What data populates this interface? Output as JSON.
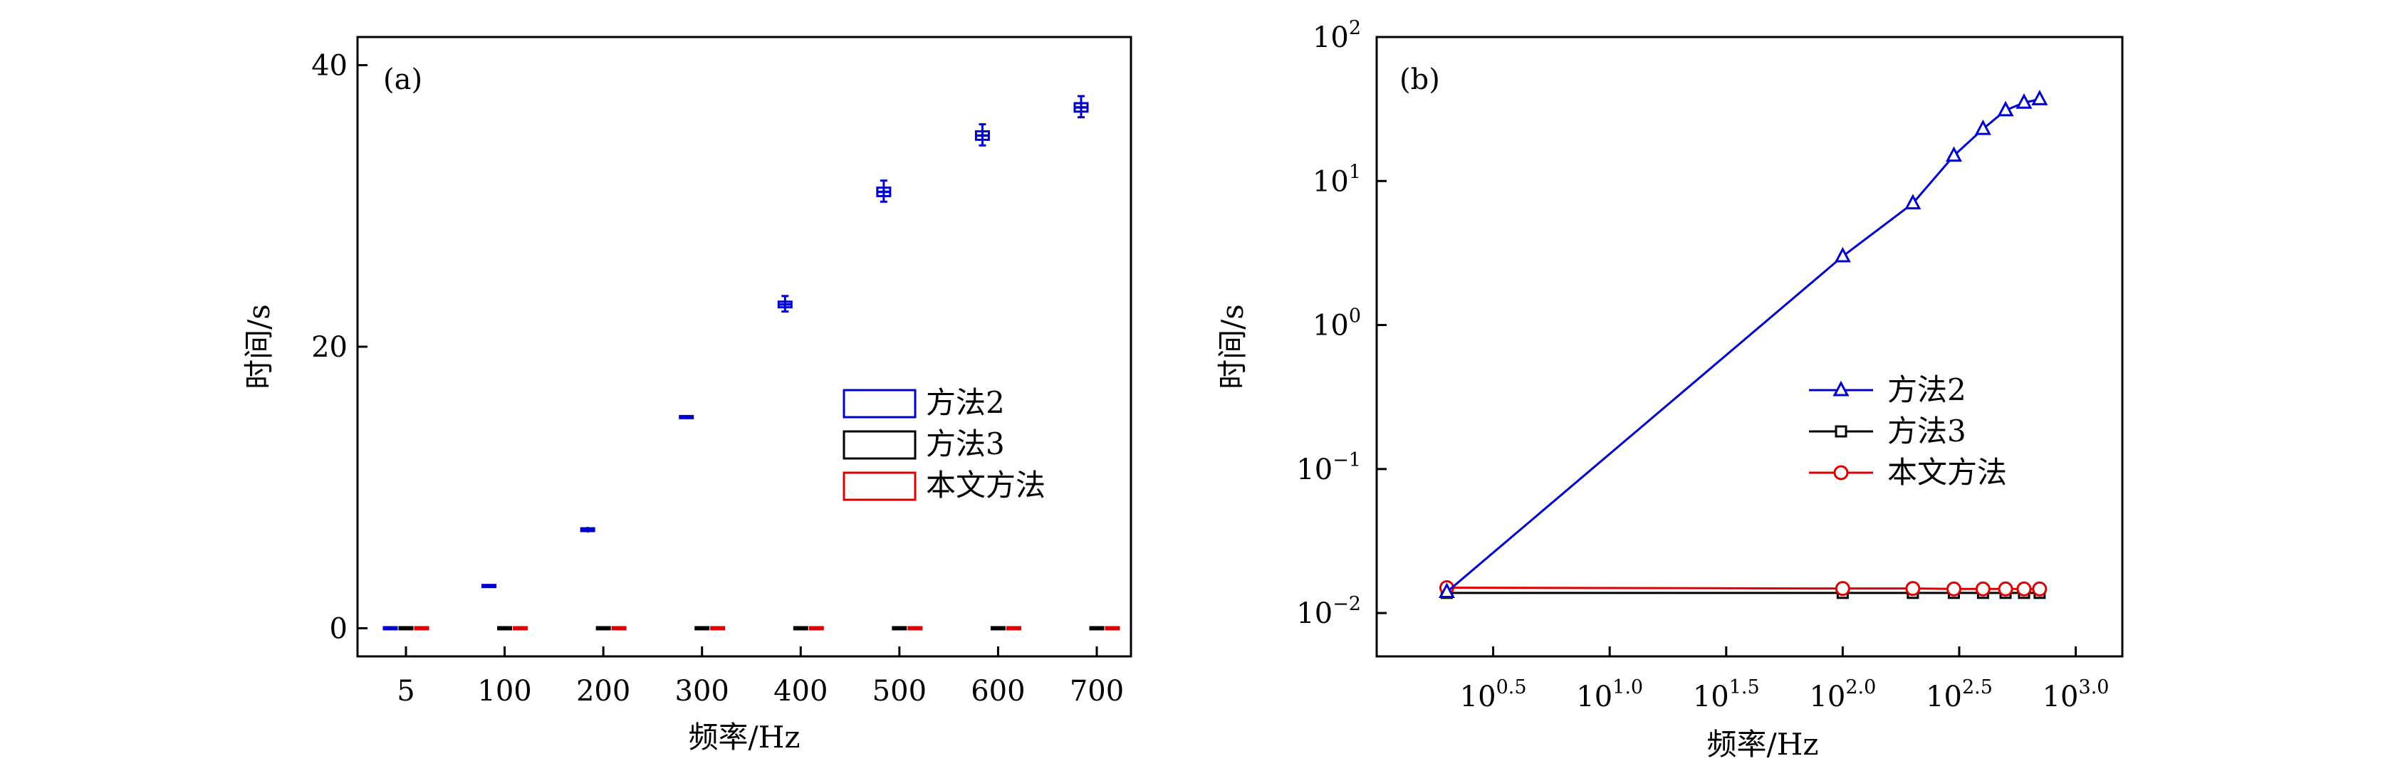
{
  "chart_data": [
    {
      "panel": "(a)",
      "type": "box",
      "xlabel": "频率/Hz",
      "ylabel": "时间/s",
      "categories": [
        "5",
        "100",
        "200",
        "300",
        "400",
        "500",
        "600",
        "700"
      ],
      "yticks": [
        "0",
        "20",
        "40"
      ],
      "ylim": [
        -2,
        42
      ],
      "legend_position": "center-right",
      "series": [
        {
          "name": "方法2",
          "color": "#0000cc",
          "boxes": [
            {
              "low": 0,
              "q1": 0,
              "median": 0,
              "q3": 0,
              "high": 0
            },
            {
              "low": 2.9,
              "q1": 2.95,
              "median": 3,
              "q3": 3.05,
              "high": 3.1
            },
            {
              "low": 6.8,
              "q1": 6.9,
              "median": 7,
              "q3": 7.1,
              "high": 7.2
            },
            {
              "low": 15,
              "q1": 15,
              "median": 15,
              "q3": 15,
              "high": 15
            },
            {
              "low": 22.5,
              "q1": 22.8,
              "median": 23,
              "q3": 23.2,
              "high": 23.6
            },
            {
              "low": 30.3,
              "q1": 30.7,
              "median": 31,
              "q3": 31.3,
              "high": 31.8
            },
            {
              "low": 34.3,
              "q1": 34.7,
              "median": 35,
              "q3": 35.3,
              "high": 35.8
            },
            {
              "low": 36.3,
              "q1": 36.7,
              "median": 37,
              "q3": 37.3,
              "high": 37.8
            }
          ]
        },
        {
          "name": "方法3",
          "color": "#000000",
          "boxes": [
            {
              "low": 0,
              "q1": 0,
              "median": 0,
              "q3": 0,
              "high": 0
            },
            {
              "low": 0,
              "q1": 0,
              "median": 0,
              "q3": 0,
              "high": 0
            },
            {
              "low": 0,
              "q1": 0,
              "median": 0,
              "q3": 0,
              "high": 0
            },
            {
              "low": 0,
              "q1": 0,
              "median": 0,
              "q3": 0,
              "high": 0
            },
            {
              "low": 0,
              "q1": 0,
              "median": 0,
              "q3": 0,
              "high": 0
            },
            {
              "low": 0,
              "q1": 0,
              "median": 0,
              "q3": 0,
              "high": 0
            },
            {
              "low": 0,
              "q1": 0,
              "median": 0,
              "q3": 0,
              "high": 0
            },
            {
              "low": 0,
              "q1": 0,
              "median": 0,
              "q3": 0,
              "high": 0
            }
          ]
        },
        {
          "name": "本文方法",
          "color": "#dd0000",
          "boxes": [
            {
              "low": 0,
              "q1": 0,
              "median": 0,
              "q3": 0,
              "high": 0
            },
            {
              "low": 0,
              "q1": 0,
              "median": 0,
              "q3": 0,
              "high": 0
            },
            {
              "low": 0,
              "q1": 0,
              "median": 0,
              "q3": 0,
              "high": 0
            },
            {
              "low": 0,
              "q1": 0,
              "median": 0,
              "q3": 0,
              "high": 0
            },
            {
              "low": 0,
              "q1": 0,
              "median": 0,
              "q3": 0,
              "high": 0
            },
            {
              "low": 0,
              "q1": 0,
              "median": 0,
              "q3": 0,
              "high": 0
            },
            {
              "low": 0,
              "q1": 0,
              "median": 0,
              "q3": 0,
              "high": 0
            },
            {
              "low": 0,
              "q1": 0,
              "median": 0,
              "q3": 0,
              "high": 0
            }
          ]
        }
      ]
    },
    {
      "panel": "(b)",
      "type": "line",
      "xscale": "log",
      "yscale": "log",
      "xlabel": "频率/Hz",
      "ylabel": "时间/s",
      "xlim": [
        1,
        1585
      ],
      "ylim": [
        0.005,
        100
      ],
      "xticks": [
        {
          "value": 3.1623,
          "base": "10",
          "exp": "0.5"
        },
        {
          "value": 10,
          "base": "10",
          "exp": "1.0"
        },
        {
          "value": 31.623,
          "base": "10",
          "exp": "1.5"
        },
        {
          "value": 100,
          "base": "10",
          "exp": "2.0"
        },
        {
          "value": 316.23,
          "base": "10",
          "exp": "2.5"
        },
        {
          "value": 1000,
          "base": "10",
          "exp": "3.0"
        }
      ],
      "yticks": [
        {
          "value": 0.01,
          "base": "10",
          "exp": "−2"
        },
        {
          "value": 0.1,
          "base": "10",
          "exp": "−1"
        },
        {
          "value": 1,
          "base": "10",
          "exp": "0"
        },
        {
          "value": 10,
          "base": "10",
          "exp": "1"
        },
        {
          "value": 100,
          "base": "10",
          "exp": "2"
        }
      ],
      "x": [
        2,
        100,
        200,
        300,
        400,
        500,
        600,
        700
      ],
      "legend_position": "center-right",
      "series": [
        {
          "name": "方法2",
          "color": "#0000cc",
          "marker": "triangle",
          "values": [
            0.014,
            3,
            7,
            15,
            23,
            31,
            35,
            37
          ]
        },
        {
          "name": "方法3",
          "color": "#000000",
          "marker": "square",
          "values": [
            0.0138,
            0.0138,
            0.0138,
            0.0138,
            0.0138,
            0.0138,
            0.0138,
            0.0138
          ]
        },
        {
          "name": "本文方法",
          "color": "#dd0000",
          "marker": "circle",
          "values": [
            0.015,
            0.0148,
            0.0148,
            0.0147,
            0.0147,
            0.0147,
            0.0147,
            0.0147
          ]
        }
      ]
    }
  ]
}
